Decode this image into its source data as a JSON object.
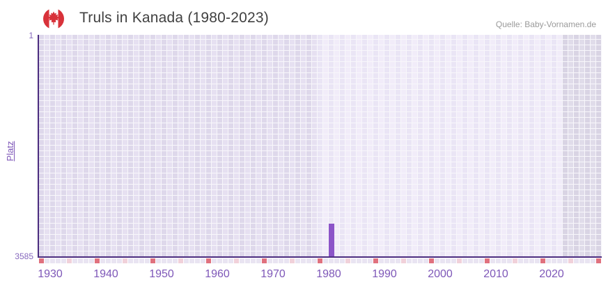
{
  "header": {
    "title": "Truls in Kanada (1980-2023)",
    "source": "Quelle: Baby-Vornamen.de",
    "flag_icon": "canada-flag-icon"
  },
  "chart_data": {
    "type": "bar",
    "title": "Truls in Kanada (1980-2023)",
    "xlabel": "",
    "ylabel": "Platz",
    "y_axis": {
      "top_label": "1",
      "bottom_label": "3585",
      "min": 1,
      "max": 3585,
      "inverted": true
    },
    "x_axis": {
      "start_year": 1930,
      "end_year": 2030,
      "tick_labels": [
        "1930",
        "1940",
        "1950",
        "1960",
        "1970",
        "1980",
        "1990",
        "2000",
        "2010",
        "2020"
      ],
      "decade_marker_interval": 10,
      "half_decade_marker_interval": 5
    },
    "data_region": {
      "start_year": 1980,
      "end_year": 2023
    },
    "series": [
      {
        "name": "Platz",
        "points": [
          {
            "year": 1982,
            "rank": 3057
          }
        ]
      }
    ],
    "legend": "none",
    "grid": "on",
    "colors": {
      "bar": "#8c55c8",
      "axis": "#4b2c7f",
      "tick_label": "#7e57b8",
      "decade_marker": "#e0717e",
      "half_decade_marker": "#f1d1da",
      "title_text": "#404040",
      "source_text": "#9a9a9a",
      "flag_red": "#d8323a"
    }
  }
}
